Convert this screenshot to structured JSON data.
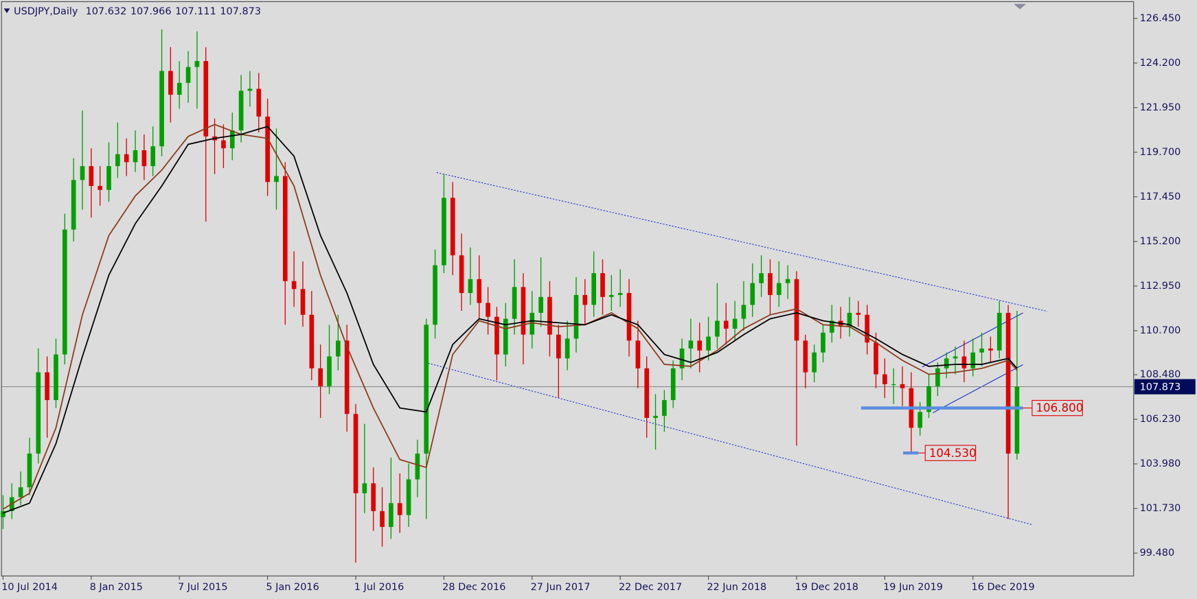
{
  "chart_data": {
    "type": "candlestick",
    "title": "USDJPY,Daily",
    "ohlc": [
      107.632,
      107.966,
      107.111,
      107.873
    ],
    "categories": [
      "10 Jul 2014",
      null,
      null,
      null,
      null,
      null,
      null,
      null,
      null,
      null,
      "8 Jan 2015",
      null,
      null,
      null,
      null,
      null,
      null,
      null,
      null,
      null,
      "7 Jul 2015",
      null,
      null,
      null,
      null,
      null,
      null,
      null,
      null,
      null,
      "5 Jan 2016",
      null,
      null,
      null,
      null,
      null,
      null,
      null,
      null,
      null,
      "1 Jul 2016",
      null,
      null,
      null,
      null,
      null,
      null,
      null,
      null,
      null,
      "28 Dec 2016",
      null,
      null,
      null,
      null,
      null,
      null,
      null,
      null,
      null,
      "27 Jun 2017",
      null,
      null,
      null,
      null,
      null,
      null,
      null,
      null,
      null,
      "22 Dec 2017",
      null,
      null,
      null,
      null,
      null,
      null,
      null,
      null,
      null,
      "22 Jun 2018",
      null,
      null,
      null,
      null,
      null,
      null,
      null,
      null,
      null,
      "19 Dec 2018",
      null,
      null,
      null,
      null,
      null,
      null,
      null,
      null,
      null,
      "19 Jun 2019",
      null,
      null,
      null,
      null,
      null,
      null,
      null,
      null,
      null,
      "16 Dec 2019",
      null,
      null,
      null,
      null,
      null
    ],
    "open": [
      101.3,
      101.6,
      102.3,
      102.8,
      104.5,
      108.6,
      107.2,
      109.5,
      115.8,
      118.3,
      119.0,
      118.0,
      117.8,
      119.0,
      119.6,
      119.2,
      119.8,
      119.0,
      120.0,
      123.8,
      122.6,
      123.2,
      124.0,
      124.3,
      120.5,
      120.3,
      119.9,
      120.8,
      122.8,
      122.9,
      121.5,
      118.2,
      118.5,
      113.2,
      112.8,
      111.5,
      108.8,
      107.9,
      109.4,
      110.2,
      106.5,
      102.5,
      103.0,
      101.6,
      100.8,
      102.0,
      101.4,
      103.2,
      104.5,
      111.0,
      114.0,
      117.4,
      114.5,
      112.6,
      113.3,
      112.1,
      111.4,
      109.5,
      111.3,
      112.9,
      110.5,
      111.6,
      112.4,
      110.5,
      109.3,
      110.3,
      112.5,
      112.0,
      113.6,
      112.4,
      112.5,
      112.6,
      110.2,
      108.8,
      106.3,
      106.4,
      107.2,
      108.8,
      109.8,
      110.2,
      109.7,
      110.4,
      111.2,
      110.8,
      111.3,
      112.0,
      113.1,
      113.6,
      112.5,
      113.1,
      113.3,
      110.2,
      108.6,
      109.6,
      110.6,
      111.2,
      110.9,
      111.6,
      111.5,
      110.1,
      108.5,
      108.0,
      108.0,
      107.8,
      105.8,
      106.6,
      107.9,
      108.8,
      109.3,
      109.4,
      108.8,
      109.6,
      109.8,
      109.7,
      111.6,
      104.5
    ],
    "high": [
      102.4,
      103.0,
      103.6,
      105.3,
      109.8,
      109.4,
      110.3,
      116.6,
      119.4,
      121.8,
      119.9,
      119.0,
      120.2,
      121.2,
      120.4,
      120.8,
      120.6,
      121.0,
      125.9,
      125.0,
      124.3,
      124.8,
      125.8,
      125.0,
      121.4,
      121.1,
      121.7,
      123.6,
      123.8,
      123.7,
      122.4,
      120.9,
      119.2,
      114.7,
      114.2,
      112.7,
      110.0,
      111.0,
      111.5,
      111.0,
      107.0,
      106.0,
      103.8,
      102.8,
      104.3,
      103.5,
      104.0,
      105.2,
      111.3,
      114.8,
      118.6,
      118.2,
      115.6,
      114.9,
      114.5,
      112.9,
      111.9,
      112.1,
      114.3,
      113.6,
      112.7,
      114.4,
      113.2,
      111.0,
      111.2,
      113.4,
      113.3,
      114.7,
      114.3,
      113.5,
      113.8,
      113.3,
      111.2,
      109.4,
      107.5,
      107.7,
      109.2,
      110.3,
      111.3,
      111.1,
      111.4,
      113.1,
      112.1,
      112.2,
      113.2,
      114.1,
      114.5,
      114.3,
      114.2,
      114.0,
      113.7,
      110.5,
      110.0,
      111.0,
      112.0,
      111.9,
      112.4,
      112.2,
      112.0,
      110.6,
      109.3,
      108.8,
      108.9,
      108.6,
      107.1,
      108.5,
      109.1,
      109.6,
      109.9,
      110.2,
      110.3,
      110.6,
      110.4,
      112.2,
      112.0,
      111.7
    ],
    "low": [
      100.7,
      101.2,
      101.9,
      102.4,
      104.0,
      105.3,
      106.8,
      109.0,
      115.2,
      116.8,
      116.4,
      117.0,
      117.2,
      118.4,
      118.5,
      118.7,
      118.3,
      118.5,
      119.5,
      121.2,
      121.9,
      122.2,
      121.9,
      116.2,
      118.6,
      118.9,
      119.3,
      120.2,
      122.0,
      120.7,
      117.5,
      116.8,
      111.0,
      111.9,
      110.9,
      108.2,
      106.3,
      107.5,
      108.7,
      105.6,
      99.0,
      101.5,
      100.6,
      99.8,
      100.2,
      100.5,
      100.8,
      102.3,
      101.2,
      110.3,
      113.6,
      113.5,
      111.7,
      112.0,
      111.3,
      110.5,
      108.2,
      108.9,
      110.5,
      109.0,
      109.8,
      110.9,
      109.4,
      107.3,
      108.7,
      109.6,
      111.0,
      111.4,
      111.5,
      111.7,
      111.9,
      109.4,
      107.8,
      105.3,
      104.7,
      105.6,
      106.8,
      108.2,
      108.8,
      108.6,
      109.2,
      109.8,
      110.0,
      110.2,
      110.7,
      111.4,
      112.4,
      111.5,
      111.9,
      112.3,
      104.9,
      107.8,
      108.1,
      109.1,
      110.1,
      110.3,
      110.4,
      110.9,
      109.5,
      107.8,
      107.3,
      107.0,
      106.9,
      104.5,
      105.4,
      106.3,
      107.4,
      108.3,
      108.5,
      108.1,
      108.4,
      108.9,
      109.1,
      109.3,
      101.2,
      104.2
    ],
    "close": [
      101.6,
      102.3,
      102.8,
      104.5,
      108.6,
      107.2,
      109.5,
      115.8,
      118.3,
      119.0,
      118.0,
      117.8,
      119.0,
      119.6,
      119.2,
      119.8,
      119.0,
      120.0,
      123.8,
      122.6,
      123.2,
      124.0,
      124.3,
      120.5,
      120.3,
      119.9,
      120.8,
      122.8,
      122.9,
      121.5,
      118.2,
      118.5,
      113.2,
      112.8,
      111.5,
      108.8,
      107.9,
      109.4,
      110.2,
      106.5,
      102.5,
      103.0,
      101.6,
      100.8,
      102.0,
      101.4,
      103.2,
      104.5,
      111.0,
      114.0,
      117.4,
      114.5,
      112.6,
      113.3,
      112.1,
      111.4,
      109.5,
      111.3,
      112.9,
      110.5,
      111.6,
      112.4,
      110.5,
      109.3,
      110.3,
      112.5,
      112.0,
      113.6,
      112.4,
      112.5,
      112.6,
      110.2,
      108.8,
      106.3,
      106.4,
      107.2,
      108.8,
      109.8,
      110.2,
      109.7,
      110.4,
      111.2,
      110.8,
      111.3,
      112.0,
      113.1,
      113.6,
      112.5,
      113.1,
      113.3,
      110.2,
      108.6,
      109.6,
      110.6,
      111.2,
      110.9,
      111.6,
      111.5,
      110.1,
      108.5,
      108.0,
      108.0,
      107.8,
      105.8,
      106.6,
      107.9,
      108.8,
      109.3,
      109.4,
      108.8,
      109.6,
      109.8,
      109.7,
      111.6,
      104.5,
      107.87
    ],
    "up_color": "#00a000",
    "down_color": "#e00000",
    "series": [
      {
        "color": "#8b3a1a",
        "x": [
          0,
          3,
          6,
          9,
          12,
          15,
          18,
          21,
          24,
          27,
          30,
          33,
          36,
          39,
          42,
          45,
          48,
          51,
          54,
          57,
          60,
          63,
          66,
          69,
          72,
          75,
          78,
          81,
          84,
          87,
          90,
          93,
          96,
          99,
          102,
          105,
          108,
          111,
          114,
          115
        ],
        "values": [
          101.7,
          102.5,
          105.8,
          111.5,
          115.5,
          117.5,
          118.8,
          120.5,
          121.1,
          120.6,
          120.4,
          118.0,
          113.5,
          109.9,
          106.8,
          104.2,
          103.8,
          109.5,
          111.2,
          110.8,
          111.1,
          110.9,
          111.0,
          111.6,
          110.8,
          109.0,
          108.9,
          109.7,
          110.8,
          111.5,
          111.8,
          111.0,
          110.9,
          110.1,
          109.2,
          108.5,
          108.6,
          108.8,
          109.2,
          108.7
        ]
      },
      {
        "color": "#000000",
        "x": [
          0,
          3,
          6,
          9,
          12,
          15,
          18,
          21,
          24,
          27,
          30,
          33,
          36,
          39,
          42,
          45,
          48,
          51,
          54,
          57,
          60,
          63,
          66,
          69,
          72,
          75,
          78,
          81,
          84,
          87,
          90,
          93,
          96,
          99,
          102,
          105,
          108,
          111,
          114,
          115
        ],
        "values": [
          101.5,
          102.0,
          105.0,
          109.4,
          113.5,
          116.1,
          118.0,
          120.1,
          120.4,
          120.6,
          121.0,
          119.5,
          115.5,
          112.6,
          109.0,
          106.8,
          106.6,
          110.0,
          111.3,
          111.0,
          111.2,
          111.1,
          111.0,
          111.5,
          111.0,
          109.5,
          109.1,
          109.6,
          110.5,
          111.3,
          111.6,
          111.2,
          111.0,
          110.3,
          109.5,
          108.9,
          109.0,
          109.0,
          109.3,
          108.8
        ]
      }
    ],
    "ylim": [
      98.326,
      127.296
    ],
    "yticks": [
      {
        "value": 126.45,
        "label": "126.450"
      },
      {
        "value": 124.2,
        "label": "124.200"
      },
      {
        "value": 121.95,
        "label": "121.950"
      },
      {
        "value": 119.7,
        "label": "119.700"
      },
      {
        "value": 117.45,
        "label": "117.450"
      },
      {
        "value": 115.2,
        "label": "115.200"
      },
      {
        "value": 112.95,
        "label": "112.950"
      },
      {
        "value": 110.7,
        "label": "110.700"
      },
      {
        "value": 108.48,
        "label": "108.480"
      },
      {
        "value": 106.23,
        "label": "106.230"
      },
      {
        "value": 103.98,
        "label": "103.980"
      },
      {
        "value": 101.73,
        "label": "101.730"
      },
      {
        "value": 99.48,
        "label": "99.480"
      }
    ],
    "price_line": {
      "value": 107.873,
      "label": "107.873"
    },
    "levels": [
      {
        "value": 106.8,
        "label": "106.800"
      },
      {
        "value": 104.53,
        "label": "104.530"
      }
    ]
  }
}
